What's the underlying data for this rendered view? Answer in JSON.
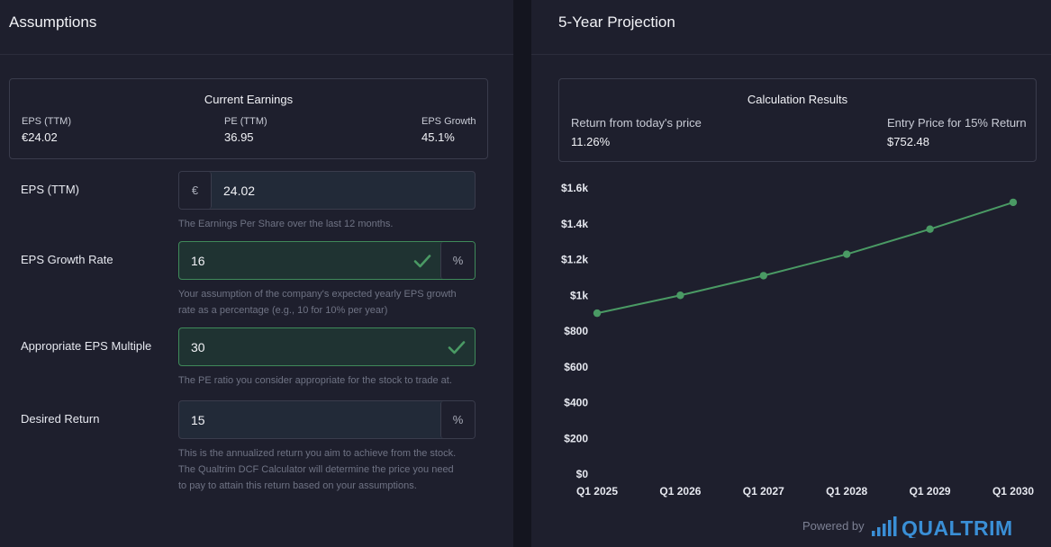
{
  "assumptions": {
    "title": "Assumptions",
    "current_earnings": {
      "title": "Current Earnings",
      "stats": [
        {
          "label": "EPS (TTM)",
          "value": "€24.02"
        },
        {
          "label": "PE (TTM)",
          "value": "36.95"
        },
        {
          "label": "EPS Growth",
          "value": "45.1%"
        }
      ]
    },
    "fields": {
      "eps": {
        "label": "EPS (TTM)",
        "prefix": "€",
        "value": "24.02",
        "help": "The Earnings Per Share over the last 12 months."
      },
      "growth": {
        "label": "EPS Growth Rate",
        "value": "16",
        "suffix": "%",
        "help1": "Your assumption of the company's expected yearly EPS growth",
        "help2": "rate as a percentage (e.g., 10 for 10% per year)"
      },
      "multiple": {
        "label": "Appropriate EPS Multiple",
        "value": "30",
        "help": "The PE ratio you consider appropriate for the stock to trade at."
      },
      "desired": {
        "label": "Desired Return",
        "value": "15",
        "suffix": "%",
        "help1": "This is the annualized return you aim to achieve from the stock.",
        "help2": "The Qualtrim DCF Calculator will determine the price you need",
        "help3": "to pay to attain this return based on your assumptions."
      }
    }
  },
  "projection": {
    "title": "5-Year Projection",
    "results": {
      "title": "Calculation Results",
      "return_label": "Return from today's price",
      "return_value": "11.26%",
      "entry_label": "Entry Price for 15% Return",
      "entry_value": "$752.48"
    },
    "powered_by": "Powered by",
    "brand": "QUALTRIM"
  },
  "colors": {
    "accent": "#4a9a64",
    "valid_border": "#3f8a5a"
  },
  "chart_data": {
    "type": "line",
    "categories": [
      "Q1 2025",
      "Q1 2026",
      "Q1 2027",
      "Q1 2028",
      "Q1 2029",
      "Q1 2030"
    ],
    "series": [
      {
        "values": [
          900,
          1000,
          1110,
          1230,
          1370,
          1520
        ]
      }
    ],
    "ylim": [
      0,
      1600
    ],
    "yticks": [
      0,
      200,
      400,
      600,
      800,
      1000,
      1200,
      1400,
      1600
    ],
    "ytick_labels": [
      "$0",
      "$200",
      "$400",
      "$600",
      "$800",
      "$1k",
      "$1.2k",
      "$1.4k",
      "$1.6k"
    ],
    "grid": false,
    "legend": "none"
  }
}
